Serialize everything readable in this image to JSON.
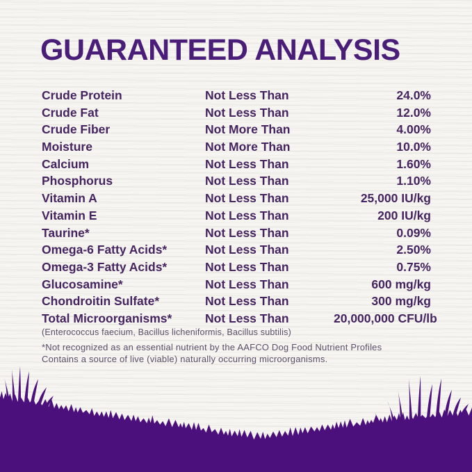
{
  "title": "GUARANTEED ANALYSIS",
  "colors": {
    "title": "#4a1e78",
    "body-text": "#45245f",
    "footnote": "#5a4e68",
    "grass": "#4c107c",
    "background": "#f6f5f2"
  },
  "table": {
    "rows": [
      {
        "nutrient": "Crude Protein",
        "basis": "Not Less Than",
        "value": "24.0%"
      },
      {
        "nutrient": "Crude Fat",
        "basis": "Not Less Than",
        "value": "12.0%"
      },
      {
        "nutrient": "Crude Fiber",
        "basis": "Not More Than",
        "value": "4.00%"
      },
      {
        "nutrient": "Moisture",
        "basis": "Not More Than",
        "value": "10.0%"
      },
      {
        "nutrient": "Calcium",
        "basis": "Not Less Than",
        "value": "1.60%"
      },
      {
        "nutrient": "Phosphorus",
        "basis": "Not Less Than",
        "value": "1.10%"
      },
      {
        "nutrient": "Vitamin A",
        "basis": "Not Less Than",
        "value": "25,000 IU/kg"
      },
      {
        "nutrient": "Vitamin E",
        "basis": "Not Less Than",
        "value": "200 IU/kg"
      },
      {
        "nutrient": "Taurine*",
        "basis": "Not Less Than",
        "value": "0.09%"
      },
      {
        "nutrient": "Omega-6 Fatty Acids*",
        "basis": "Not Less Than",
        "value": "2.50%"
      },
      {
        "nutrient": "Omega-3 Fatty Acids*",
        "basis": "Not Less Than",
        "value": "0.75%"
      },
      {
        "nutrient": "Glucosamine*",
        "basis": "Not Less Than",
        "value": "600 mg/kg"
      },
      {
        "nutrient": "Chondroitin Sulfate*",
        "basis": "Not Less Than",
        "value": "300 mg/kg"
      },
      {
        "nutrient": "Total Microorganisms*",
        "basis": "Not Less Than",
        "value": "20,000,000 CFU/lb"
      }
    ]
  },
  "footnotes": {
    "species": "(Enterococcus faecium, Bacillus licheniformis, Bacillus subtilis)",
    "asterisk_line1": "*Not recognized as an essential nutrient by the AAFCO Dog Food Nutrient Profiles",
    "asterisk_line2": "Contains a source of live (viable) naturally occurring microorganisms."
  }
}
